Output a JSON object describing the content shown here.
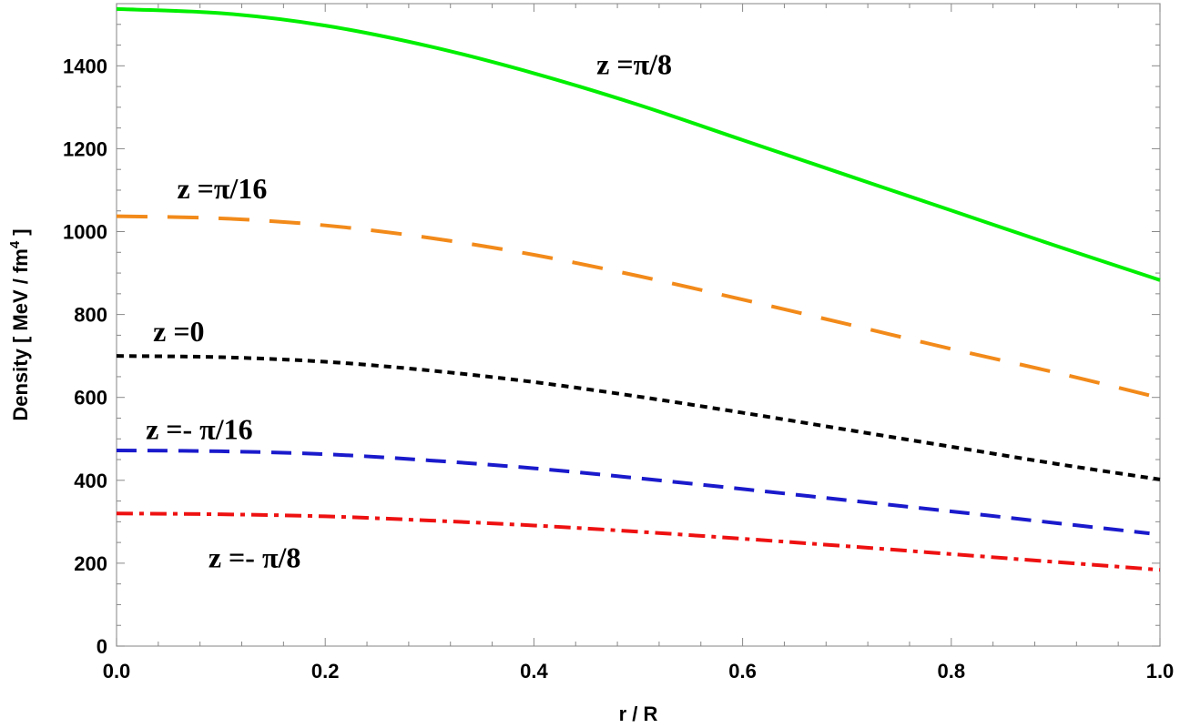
{
  "chart_data": {
    "type": "line",
    "xlabel": "r / R",
    "ylabel": "Density  [ MeV / fm",
    "ylabel_sup": "4",
    "ylabel_close": " ]",
    "xlim": [
      0,
      1
    ],
    "ylim": [
      0,
      1550
    ],
    "x_ticks": [
      0.0,
      0.2,
      0.4,
      0.6,
      0.8,
      1.0
    ],
    "x_tick_labels": [
      "0.0",
      "0.2",
      "0.4",
      "0.6",
      "0.8",
      "1.0"
    ],
    "y_ticks": [
      0,
      200,
      400,
      600,
      800,
      1000,
      1200,
      1400
    ],
    "y_tick_labels": [
      "0",
      "200",
      "400",
      "600",
      "800",
      "1000",
      "1200",
      "1400"
    ],
    "grid": false,
    "legend": "none",
    "series": [
      {
        "label": "z =π/8",
        "color": "#00ee00",
        "dash": "solid",
        "x": [
          0.0,
          0.1,
          0.2,
          0.3,
          0.4,
          0.5,
          0.6,
          0.7,
          0.8,
          0.9,
          1.0
        ],
        "y": [
          1537,
          1527,
          1497,
          1447,
          1382,
          1306,
          1221,
          1136,
          1051,
          966,
          883
        ]
      },
      {
        "label": "z =π/16",
        "color": "#f28a1a",
        "dash": "longdash",
        "x": [
          0.0,
          0.1,
          0.2,
          0.3,
          0.4,
          0.5,
          0.6,
          0.7,
          0.8,
          0.9,
          0.99
        ],
        "y": [
          1037,
          1032,
          1015,
          985,
          944,
          893,
          836,
          777,
          717,
          660,
          605
        ]
      },
      {
        "label": "z =0",
        "color": "#000000",
        "dash": "dotted",
        "x": [
          0.0,
          0.1,
          0.2,
          0.3,
          0.4,
          0.5,
          0.6,
          0.7,
          0.8,
          0.9,
          1.0
        ],
        "y": [
          700,
          697,
          686,
          665,
          637,
          602,
          563,
          522,
          481,
          440,
          402
        ]
      },
      {
        "label": "z =- π/16",
        "color": "#1a1acc",
        "dash": "dashed",
        "x": [
          0.0,
          0.1,
          0.2,
          0.3,
          0.4,
          0.5,
          0.6,
          0.7,
          0.8,
          0.9,
          0.99
        ],
        "y": [
          472,
          470,
          463,
          448,
          429,
          405,
          379,
          352,
          325,
          297,
          272
        ]
      },
      {
        "label": "z =- π/8",
        "color": "#ee1111",
        "dash": "dashdot",
        "x": [
          0.0,
          0.1,
          0.2,
          0.3,
          0.4,
          0.5,
          0.6,
          0.7,
          0.8,
          0.9,
          1.0
        ],
        "y": [
          320,
          318,
          313,
          303,
          291,
          276,
          259,
          241,
          222,
          203,
          184
        ]
      }
    ],
    "annotations": [
      {
        "text": "z =π/8",
        "x": 0.46,
        "y": 1380
      },
      {
        "text": "z =π/16",
        "x": 0.058,
        "y": 1080
      },
      {
        "text": "z =0",
        "x": 0.035,
        "y": 735
      },
      {
        "text": "z =- π/16",
        "x": 0.028,
        "y": 500
      },
      {
        "text": "z =- π/8",
        "x": 0.088,
        "y": 190
      }
    ]
  }
}
